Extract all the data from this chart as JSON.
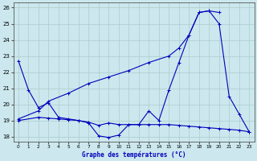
{
  "title": "Graphe des températures (°C)",
  "bg_color": "#cce8ee",
  "grid_color": "#aacccc",
  "line_color": "#0000bb",
  "xlim": [
    -0.5,
    23.5
  ],
  "ylim": [
    17.7,
    26.3
  ],
  "yticks": [
    18,
    19,
    20,
    21,
    22,
    23,
    24,
    25,
    26
  ],
  "xticks": [
    0,
    1,
    2,
    3,
    4,
    5,
    6,
    7,
    8,
    9,
    10,
    11,
    12,
    13,
    14,
    15,
    16,
    17,
    18,
    19,
    20,
    21,
    22,
    23
  ],
  "series1_x": [
    0,
    1,
    2,
    3,
    4,
    5,
    6,
    7,
    8,
    9,
    10,
    11,
    12,
    13,
    14,
    15,
    16,
    17,
    18,
    19,
    20,
    21,
    22,
    23
  ],
  "series1_y": [
    22.7,
    20.9,
    19.8,
    20.1,
    19.2,
    19.1,
    19.0,
    18.85,
    18.05,
    17.95,
    18.1,
    18.75,
    18.75,
    19.6,
    19.0,
    20.9,
    22.6,
    24.3,
    25.7,
    25.8,
    25.0,
    20.5,
    19.4,
    18.3
  ],
  "series2_x": [
    0,
    2,
    3,
    5,
    7,
    9,
    11,
    13,
    15,
    16,
    17,
    18,
    19,
    20
  ],
  "series2_y": [
    19.1,
    19.6,
    20.2,
    20.7,
    21.3,
    21.7,
    22.1,
    22.6,
    23.0,
    23.5,
    24.3,
    25.7,
    25.8,
    25.7
  ],
  "series3_x": [
    0,
    2,
    3,
    4,
    5,
    6,
    7,
    8,
    9,
    10,
    11,
    12,
    13,
    14,
    15,
    16,
    17,
    18,
    19,
    20,
    21,
    22,
    23
  ],
  "series3_y": [
    19.0,
    19.2,
    19.15,
    19.1,
    19.05,
    19.0,
    18.9,
    18.7,
    18.85,
    18.75,
    18.75,
    18.75,
    18.75,
    18.75,
    18.75,
    18.7,
    18.65,
    18.6,
    18.55,
    18.5,
    18.45,
    18.4,
    18.3
  ]
}
